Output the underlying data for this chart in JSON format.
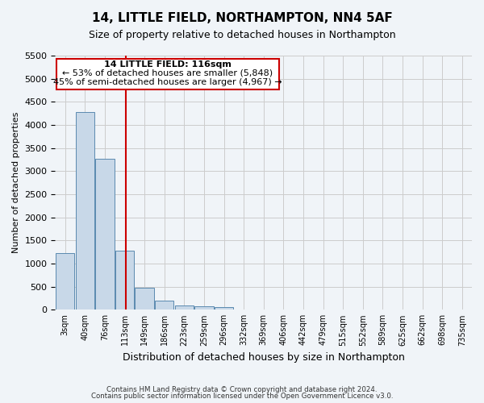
{
  "title": "14, LITTLE FIELD, NORTHAMPTON, NN4 5AF",
  "subtitle": "Size of property relative to detached houses in Northampton",
  "xlabel": "Distribution of detached houses by size in Northampton",
  "ylabel": "Number of detached properties",
  "footer_line1": "Contains HM Land Registry data © Crown copyright and database right 2024.",
  "footer_line2": "Contains public sector information licensed under the Open Government Licence v3.0.",
  "bar_color": "#c8d8e8",
  "bar_edge_color": "#5a8ab0",
  "grid_color": "#cccccc",
  "background_color": "#f0f4f8",
  "annotation_text_line1": "14 LITTLE FIELD: 116sqm",
  "annotation_text_line2": "← 53% of detached houses are smaller (5,848)",
  "annotation_text_line3": "45% of semi-detached houses are larger (4,967) →",
  "red_line_color": "#cc0000",
  "annotation_box_color": "#ffffff",
  "annotation_box_edge": "#cc0000",
  "ylim": [
    0,
    5500
  ],
  "yticks": [
    0,
    500,
    1000,
    1500,
    2000,
    2500,
    3000,
    3500,
    4000,
    4500,
    5000,
    5500
  ],
  "bin_labels": [
    "3sqm",
    "40sqm",
    "76sqm",
    "113sqm",
    "149sqm",
    "186sqm",
    "223sqm",
    "259sqm",
    "296sqm",
    "332sqm",
    "369sqm",
    "406sqm",
    "442sqm",
    "479sqm",
    "515sqm",
    "552sqm",
    "589sqm",
    "625sqm",
    "662sqm",
    "698sqm",
    "735sqm"
  ],
  "bar_heights": [
    1220,
    4280,
    3270,
    1280,
    480,
    200,
    100,
    70,
    60,
    0,
    0,
    0,
    0,
    0,
    0,
    0,
    0,
    0,
    0,
    0,
    0
  ]
}
